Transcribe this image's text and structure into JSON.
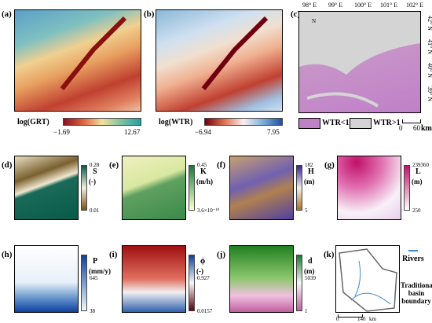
{
  "panel_a": {
    "label": "(a)",
    "colorbar_title": "log(GRT)",
    "min": "−1.69",
    "max": "12.67"
  },
  "panel_b": {
    "label": "(b)",
    "colorbar_title": "log(WTR)",
    "min": "−6.94",
    "max": "7.95"
  },
  "panel_c": {
    "label": "(c)",
    "north": "N",
    "longitudes": [
      "98° E",
      "99° E",
      "100° E",
      "101° E",
      "102° E"
    ],
    "latitudes": [
      "42° N",
      "41° N",
      "40° N",
      "39° N"
    ],
    "legend": [
      "WTR<1",
      "WTR>1"
    ],
    "scale": [
      "0",
      "60",
      "km"
    ]
  },
  "small_panels": [
    {
      "label": "(d)",
      "variable": "S",
      "unit": "(-)",
      "max": "0.28",
      "min": "0.01"
    },
    {
      "label": "(e)",
      "variable": "K",
      "unit": "(m/h)",
      "max": "0.45",
      "min": "3.6×10⁻¹⁰"
    },
    {
      "label": "(f)",
      "variable": "H",
      "unit": "(m)",
      "max": "182",
      "min": "5"
    },
    {
      "label": "(g)",
      "variable": "L",
      "unit": "(m)",
      "max": "239360",
      "min": "250"
    },
    {
      "label": "(h)",
      "variable": "P",
      "unit": "(mm/y)",
      "max": "645",
      "min": "38"
    },
    {
      "label": "(i)",
      "variable": "ϕ",
      "unit": "(-)",
      "max": "0.927",
      "min": "0.0157"
    },
    {
      "label": "(j)",
      "variable": "d",
      "unit": "(m)",
      "max": "5039",
      "min": "1"
    }
  ],
  "panel_k": {
    "label": "(k)",
    "legend": [
      "Rivers",
      "Traditional basin boundary"
    ],
    "scale": [
      "0",
      "140",
      "km"
    ]
  }
}
